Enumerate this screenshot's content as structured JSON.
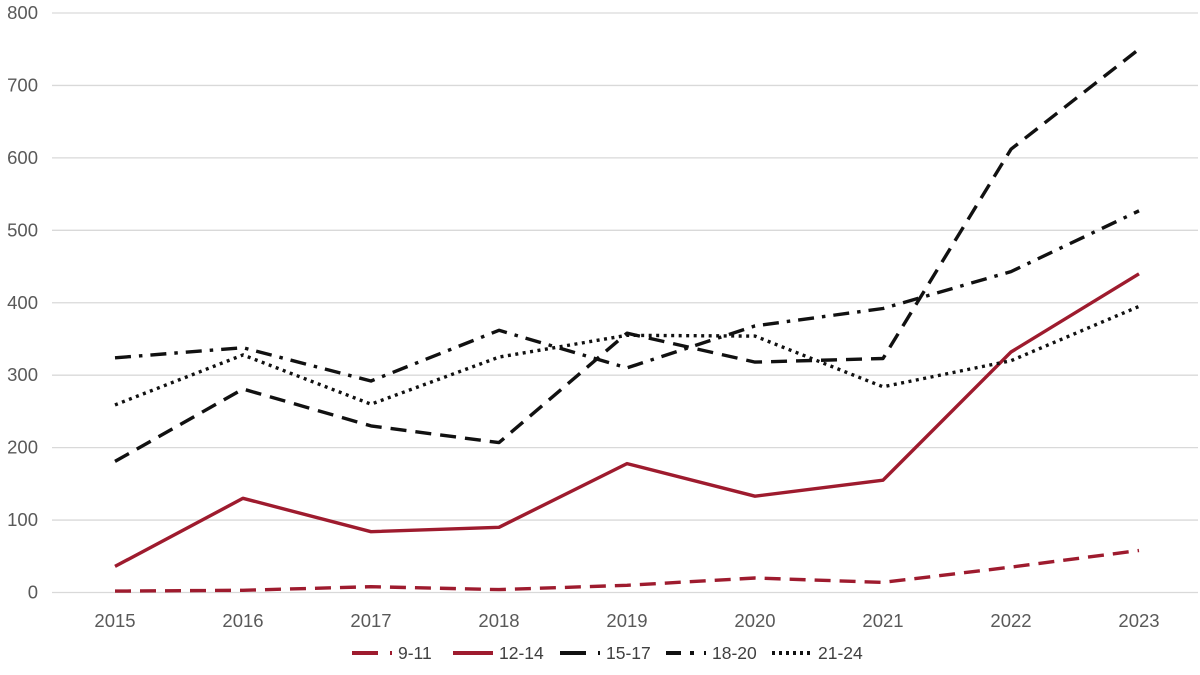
{
  "chart_data": {
    "type": "line",
    "title": "",
    "xlabel": "",
    "ylabel": "",
    "categories": [
      "2015",
      "2016",
      "2017",
      "2018",
      "2019",
      "2020",
      "2021",
      "2022",
      "2023"
    ],
    "series": [
      {
        "name": "9-11",
        "color": "#9e1b2e",
        "style": "dashed",
        "values": [
          2,
          3,
          8,
          4,
          10,
          20,
          14,
          35,
          58
        ]
      },
      {
        "name": "12-14",
        "color": "#9e1b2e",
        "style": "solid",
        "values": [
          36,
          130,
          84,
          90,
          178,
          133,
          155,
          332,
          440
        ]
      },
      {
        "name": "15-17",
        "color": "#111111",
        "style": "dashed",
        "values": [
          181,
          281,
          230,
          207,
          358,
          318,
          323,
          612,
          750
        ]
      },
      {
        "name": "18-20",
        "color": "#111111",
        "style": "dashdot",
        "values": [
          324,
          338,
          292,
          362,
          310,
          368,
          392,
          443,
          527
        ]
      },
      {
        "name": "21-24",
        "color": "#111111",
        "style": "dotted",
        "values": [
          259,
          328,
          260,
          325,
          355,
          354,
          284,
          320,
          395
        ]
      }
    ],
    "ylim": [
      0,
      800
    ],
    "y_ticks": [
      0,
      100,
      200,
      300,
      400,
      500,
      600,
      700,
      800
    ],
    "grid": true,
    "legend_position": "bottom",
    "colors": {
      "gridline": "#d9d9d9",
      "tick_label": "#595959",
      "background": "#ffffff"
    }
  }
}
